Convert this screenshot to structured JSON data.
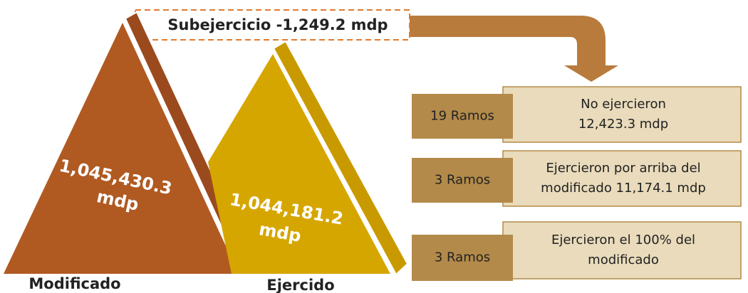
{
  "subejercicio": "Subejercicio -1,249.2 mdp",
  "triangles": [
    {
      "value": "1,045,430.3",
      "unit": "mdp",
      "label": "Modificado"
    },
    {
      "value": "1,044,181.2",
      "unit": "mdp",
      "label": "Ejercido"
    }
  ],
  "rows": [
    {
      "count": "19 Ramos",
      "detail": [
        "No ejercieron",
        "12,423.3 mdp"
      ]
    },
    {
      "count": "3 Ramos",
      "detail": [
        "Ejercieron por arriba del",
        "modificado 11,174.1 mdp"
      ]
    },
    {
      "count": "3 Ramos",
      "detail": [
        "Ejercieron el 100% del",
        "modificado"
      ]
    }
  ]
}
